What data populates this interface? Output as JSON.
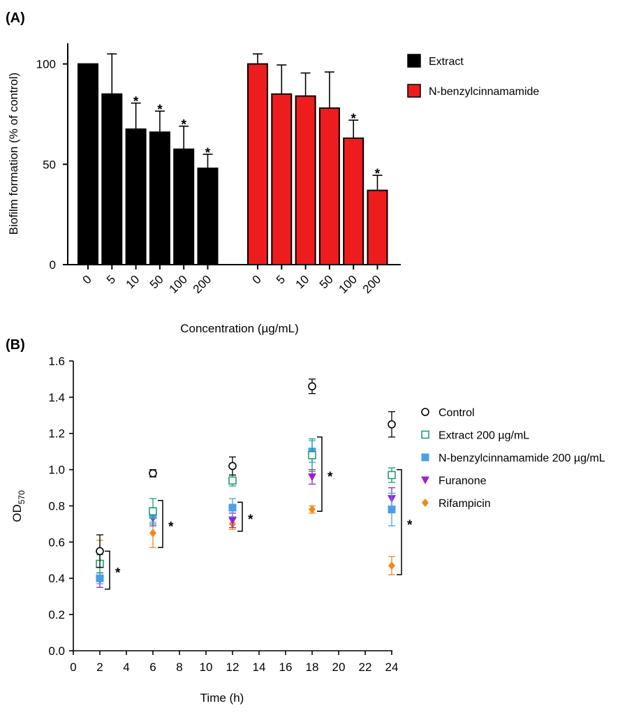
{
  "panel_labels": [
    "(A)",
    "(B)"
  ],
  "chart_data": [
    {
      "panel": "(A)",
      "type": "bar",
      "title": "",
      "xlabel": "Concentration (µg/mL)",
      "ylabel": "Biofilm formation (% of control)",
      "ylim": [
        0,
        110
      ],
      "yticks": [
        0,
        50,
        100
      ],
      "legend_position": "right",
      "categories": [
        "0",
        "5",
        "10",
        "50",
        "100",
        "200"
      ],
      "series": [
        {
          "name": "Extract",
          "color": "#000000",
          "values": [
            100,
            85,
            67.5,
            66,
            57.5,
            48
          ],
          "errors": [
            0,
            20,
            13,
            10.5,
            11.5,
            7
          ],
          "significant": [
            false,
            false,
            true,
            true,
            true,
            true
          ]
        },
        {
          "name": "N-benzylcinnamamide",
          "color": "#ee1c1c",
          "values": [
            100,
            85,
            84,
            78,
            63,
            37
          ],
          "errors": [
            5,
            14.5,
            11.5,
            18,
            9,
            7.5
          ],
          "significant": [
            false,
            false,
            false,
            false,
            true,
            true
          ]
        }
      ],
      "significance_marker": "*"
    },
    {
      "panel": "(B)",
      "type": "scatter",
      "title": "",
      "xlabel": "Time (h)",
      "ylabel": "OD",
      "ylabel_subscript": "570",
      "xlim": [
        0,
        24
      ],
      "ylim": [
        0,
        1.6
      ],
      "xticks": [
        0,
        2,
        4,
        6,
        8,
        10,
        12,
        14,
        16,
        18,
        20,
        22,
        24
      ],
      "yticks": [
        "0.0",
        "0.2",
        "0.4",
        "0.6",
        "0.8",
        "1.0",
        "1.2",
        "1.4",
        "1.6"
      ],
      "legend_position": "right",
      "series": [
        {
          "name": "Control",
          "color": "#000000",
          "marker": "circle-open",
          "x": [
            2,
            6,
            12,
            18,
            24
          ],
          "y": [
            0.55,
            0.98,
            1.02,
            1.46,
            1.25
          ],
          "err": [
            0.09,
            0.02,
            0.05,
            0.04,
            0.07
          ]
        },
        {
          "name": "Extract 200 µg/mL",
          "color": "#1aa070",
          "marker": "square-open",
          "x": [
            2,
            6,
            12,
            18,
            24
          ],
          "y": [
            0.48,
            0.77,
            0.94,
            1.08,
            0.97
          ],
          "err": [
            0.05,
            0.07,
            0.03,
            0.09,
            0.04
          ]
        },
        {
          "name": "N-benzylcinnamamide 200 µg/mL",
          "color": "#4a9fea",
          "marker": "square-filled",
          "x": [
            2,
            6,
            12,
            18,
            24
          ],
          "y": [
            0.4,
            0.75,
            0.79,
            1.1,
            0.78
          ],
          "err": [
            0.03,
            0.04,
            0.05,
            0.06,
            0.09
          ]
        },
        {
          "name": "Furanone",
          "color": "#9b1fd4",
          "marker": "triangle-down-filled",
          "x": [
            2,
            6,
            12,
            18,
            24
          ],
          "y": [
            0.39,
            0.73,
            0.72,
            0.96,
            0.84
          ],
          "err": [
            0.04,
            0.04,
            0.04,
            0.04,
            0.06
          ]
        },
        {
          "name": "Rifampicin",
          "color": "#ef8a1a",
          "marker": "diamond-filled",
          "x": [
            2,
            6,
            12,
            18,
            24
          ],
          "y": [
            0.55,
            0.65,
            0.7,
            0.78,
            0.47
          ],
          "err": [
            0.06,
            0.08,
            0.03,
            0.02,
            0.05
          ]
        }
      ],
      "significance_brackets": [
        {
          "x": 2,
          "y_top": 0.55,
          "y_bottom": 0.34,
          "label": "*"
        },
        {
          "x": 6,
          "y_top": 0.83,
          "y_bottom": 0.57,
          "label": "*"
        },
        {
          "x": 12,
          "y_top": 0.82,
          "y_bottom": 0.66,
          "label": "*"
        },
        {
          "x": 18,
          "y_top": 1.18,
          "y_bottom": 0.77,
          "label": "*"
        },
        {
          "x": 24,
          "y_top": 1.0,
          "y_bottom": 0.42,
          "label": "*"
        }
      ]
    }
  ]
}
